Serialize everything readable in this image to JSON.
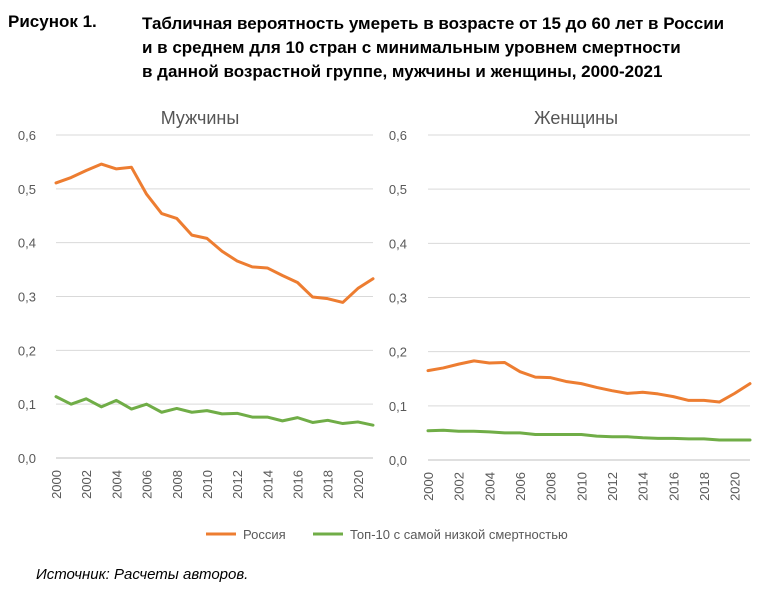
{
  "figure": {
    "label": "Рисунок 1.",
    "title_lines": [
      "Табличная вероятность умереть в возрасте от 15 до 60 лет в России",
      "и в среднем для 10 стран с минимальным уровнем смертности",
      "в данной возрастной группе, мужчины и женщины, 2000-2021"
    ],
    "source": "Источник: Расчеты авторов."
  },
  "colors": {
    "russia": "#ED7D31",
    "top10": "#70AD47",
    "grid": "#D9D9D9"
  },
  "chart_data": [
    {
      "type": "line",
      "title": "Мужчины",
      "x": [
        2000,
        2001,
        2002,
        2003,
        2004,
        2005,
        2006,
        2007,
        2008,
        2009,
        2010,
        2011,
        2012,
        2013,
        2014,
        2015,
        2016,
        2017,
        2018,
        2019,
        2020,
        2021
      ],
      "x_tick_labels": [
        "2000",
        "2002",
        "2004",
        "2006",
        "2008",
        "2010",
        "2012",
        "2014",
        "2016",
        "2018",
        "2020"
      ],
      "y_tick_labels": [
        "0,0",
        "0,1",
        "0,2",
        "0,3",
        "0,4",
        "0,5",
        "0,6"
      ],
      "ylim": [
        0,
        0.6
      ],
      "grid": true,
      "series": [
        {
          "name": "Россия",
          "values": [
            0.511,
            0.521,
            0.534,
            0.546,
            0.537,
            0.54,
            0.49,
            0.454,
            0.445,
            0.414,
            0.408,
            0.384,
            0.366,
            0.355,
            0.353,
            0.339,
            0.326,
            0.299,
            0.296,
            0.289,
            0.315,
            0.333
          ]
        },
        {
          "name": "Топ-10 с самой низкой смертностью",
          "values": [
            0.114,
            0.1,
            0.11,
            0.095,
            0.107,
            0.091,
            0.1,
            0.085,
            0.092,
            0.085,
            0.088,
            0.082,
            0.083,
            0.076,
            0.076,
            0.069,
            0.075,
            0.066,
            0.07,
            0.064,
            0.067,
            0.061
          ]
        }
      ]
    },
    {
      "type": "line",
      "title": "Женщины",
      "x": [
        2000,
        2001,
        2002,
        2003,
        2004,
        2005,
        2006,
        2007,
        2008,
        2009,
        2010,
        2011,
        2012,
        2013,
        2014,
        2015,
        2016,
        2017,
        2018,
        2019,
        2020,
        2021
      ],
      "x_tick_labels": [
        "2000",
        "2002",
        "2004",
        "2006",
        "2008",
        "2010",
        "2012",
        "2014",
        "2016",
        "2018",
        "2020"
      ],
      "y_tick_labels": [
        "0,0",
        "0,1",
        "0,2",
        "0,3",
        "0,4",
        "0,5",
        "0,6"
      ],
      "ylim": [
        0,
        0.6
      ],
      "grid": true,
      "series": [
        {
          "name": "Россия",
          "values": [
            0.165,
            0.17,
            0.177,
            0.183,
            0.179,
            0.18,
            0.163,
            0.153,
            0.152,
            0.145,
            0.141,
            0.134,
            0.128,
            0.123,
            0.125,
            0.122,
            0.117,
            0.11,
            0.11,
            0.107,
            0.123,
            0.141
          ]
        },
        {
          "name": "Топ-10 с самой низкой смертностью",
          "values": [
            0.054,
            0.055,
            0.053,
            0.053,
            0.052,
            0.05,
            0.05,
            0.047,
            0.047,
            0.047,
            0.047,
            0.044,
            0.043,
            0.043,
            0.041,
            0.04,
            0.04,
            0.039,
            0.039,
            0.037,
            0.037,
            0.037
          ]
        }
      ]
    }
  ],
  "legend": [
    {
      "label": "Россия",
      "series": "russia"
    },
    {
      "label": "Топ-10 с самой низкой смертностью",
      "series": "top10"
    }
  ]
}
